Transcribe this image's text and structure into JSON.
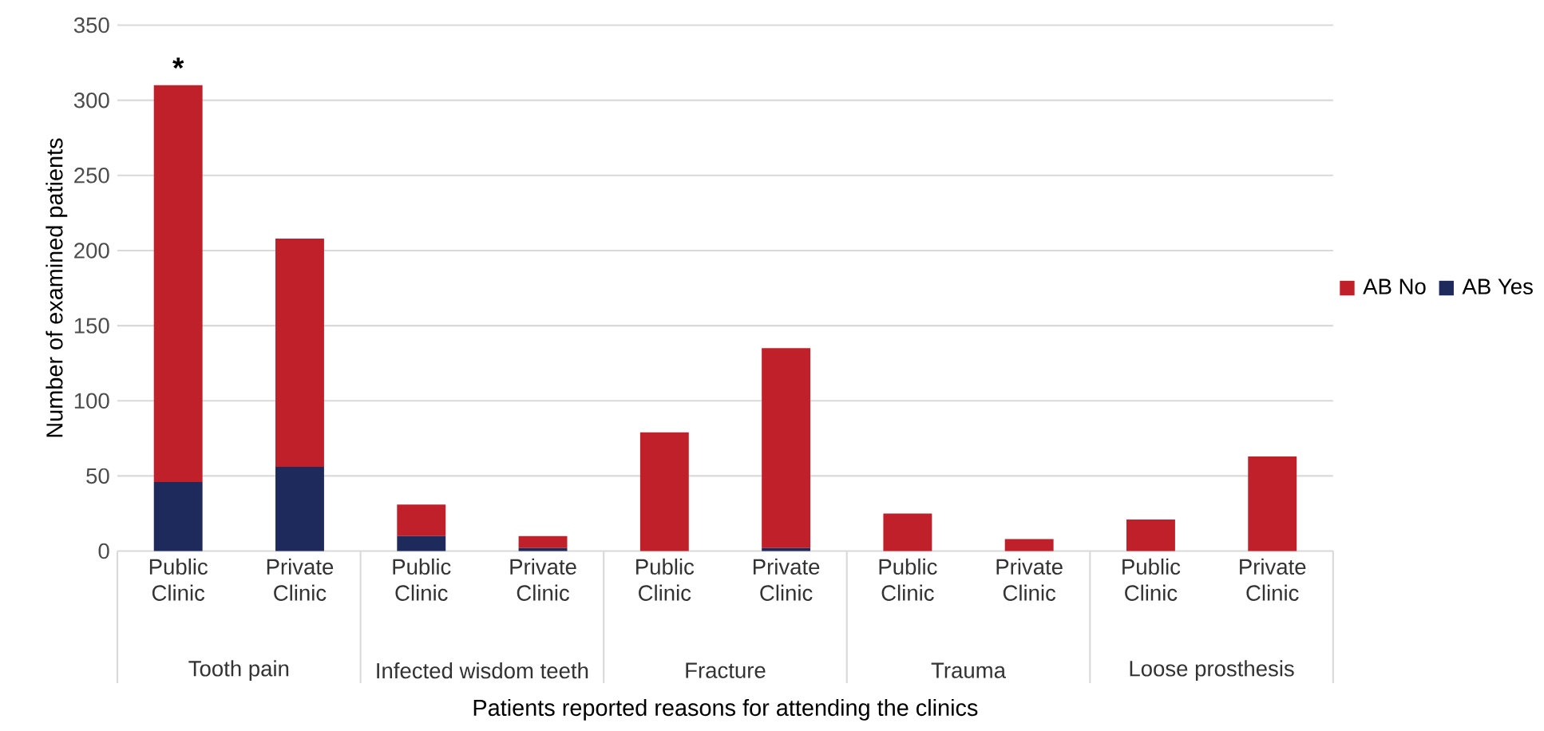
{
  "chart_data": {
    "type": "bar",
    "stacked": true,
    "xlabel": "Patients reported reasons for attending the clinics",
    "ylabel": "Number of examined patients",
    "categories": [
      "Public Clinic",
      "Private Clinic",
      "Public Clinic",
      "Private Clinic",
      "Public Clinic",
      "Private Clinic",
      "Public Clinic",
      "Private Clinic",
      "Public Clinic",
      "Private Clinic"
    ],
    "series": [
      {
        "name": "AB Yes",
        "color": "#1f2a5c",
        "values": [
          46,
          56,
          10,
          2,
          0,
          2,
          0,
          0,
          0,
          0
        ]
      },
      {
        "name": "AB No",
        "color": "#c0202a",
        "values": [
          264,
          152,
          21,
          8,
          79,
          133,
          25,
          8,
          21,
          63
        ]
      }
    ],
    "ylim": [
      0,
      350
    ],
    "yticks": [
      0,
      50,
      100,
      150,
      200,
      250,
      300,
      350
    ],
    "grid": "y",
    "legend": "right",
    "annotations": [
      {
        "text": "*",
        "x": "Public Clinic",
        "y": 310
      },
      "Tooth pain",
      "Infected wisdom teeth",
      "Fracture",
      "Trauma",
      "Loose prosthesis"
    ]
  }
}
